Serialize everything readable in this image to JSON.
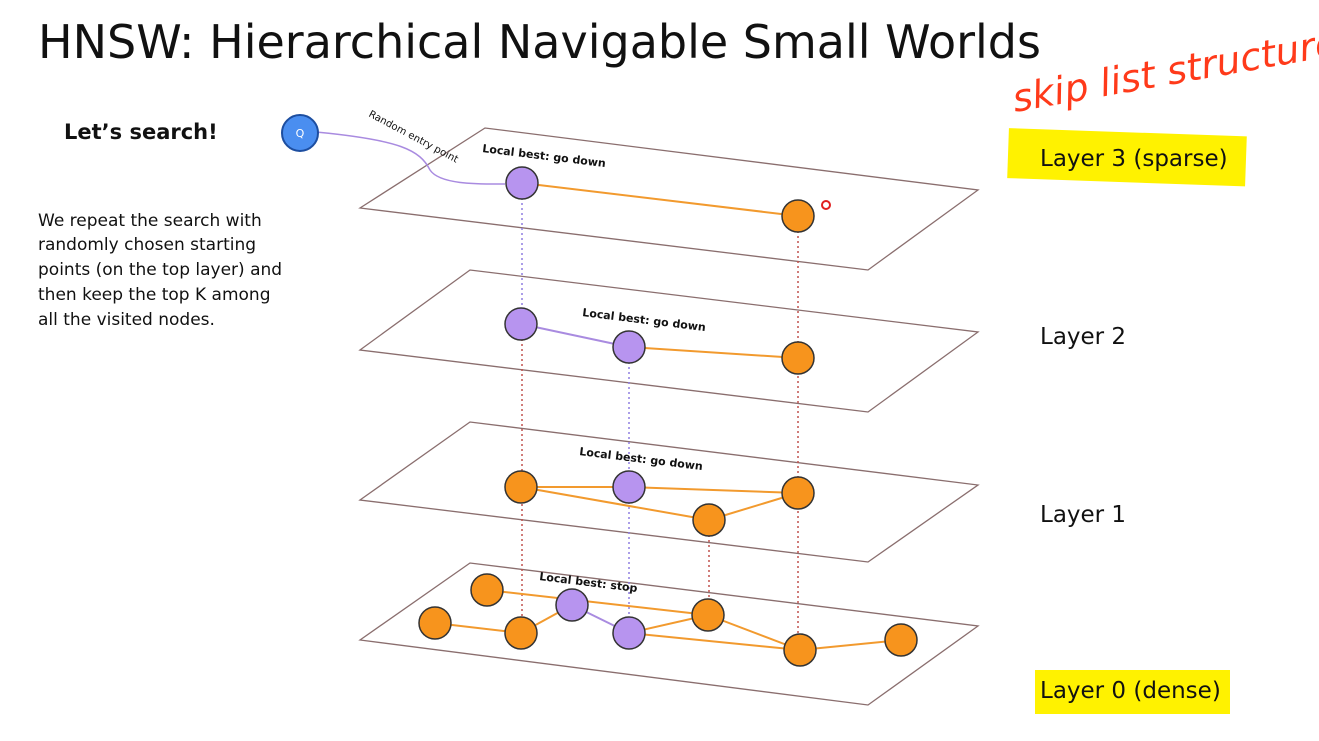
{
  "header": {
    "title": "HNSW: Hierarchical Navigable Small Worlds",
    "annotation": "skip list structure"
  },
  "sidebar": {
    "heading": "Let’s search!",
    "text": [
      "We repeat the search with",
      "randomly chosen starting",
      "points (on the top layer) and",
      "then keep the top K among",
      "all the visited nodes."
    ]
  },
  "layers": [
    {
      "label": "Layer 3 (sparse)"
    },
    {
      "label": "Layer 2"
    },
    {
      "label": "Layer 1"
    },
    {
      "label": "Layer 0 (dense)"
    }
  ],
  "diagram": {
    "query": "Q",
    "entry": "Random entry point",
    "steps": [
      "Local best: go down",
      "Local best: go down",
      "Local best: go down",
      "Local best: stop"
    ]
  }
}
